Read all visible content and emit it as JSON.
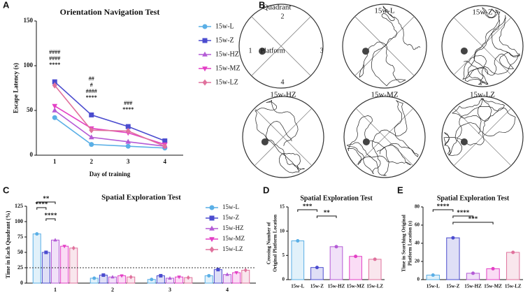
{
  "panel_letters": [
    "A",
    "B",
    "C",
    "D",
    "E"
  ],
  "chart_data": [
    {
      "type": "line",
      "title": "Orientation Navigation Test",
      "x_label": "Day of training",
      "y_label": "Escape Latency (s)",
      "categories": [
        "1",
        "2",
        "3",
        "4"
      ],
      "ylim": [
        0,
        150
      ],
      "yticks": [
        0,
        50,
        100,
        150
      ],
      "series": [
        {
          "name": "15w-L",
          "color": "#5aafe6",
          "marker": "circle",
          "values": [
            42,
            12,
            10,
            8
          ]
        },
        {
          "name": "15w-Z",
          "color": "#4b4ccf",
          "marker": "square",
          "values": [
            82,
            45,
            32,
            16
          ]
        },
        {
          "name": "15w-HZ",
          "color": "#b45bd6",
          "marker": "triangle",
          "values": [
            50,
            20,
            15,
            10
          ]
        },
        {
          "name": "15w-MZ",
          "color": "#e33fc5",
          "marker": "triangle-down",
          "values": [
            55,
            30,
            25,
            12
          ]
        },
        {
          "name": "15w-LZ",
          "color": "#e0729d",
          "marker": "diamond",
          "values": [
            78,
            28,
            27,
            10
          ]
        }
      ],
      "annotations": [
        {
          "category": 0,
          "text": "****",
          "color": "#4b4ccf"
        },
        {
          "category": 0,
          "text": "####",
          "color": "#b07ad8"
        },
        {
          "category": 0,
          "text": "####",
          "color": "#e57ab0"
        },
        {
          "category": 1,
          "text": "****",
          "color": "#4b4ccf"
        },
        {
          "category": 1,
          "text": "####",
          "color": "#b07ad8"
        },
        {
          "category": 1,
          "text": "#",
          "color": "#d77ac8"
        },
        {
          "category": 1,
          "text": "##",
          "color": "#e57ab0"
        },
        {
          "category": 2,
          "text": "****",
          "color": "#4b4ccf"
        },
        {
          "category": 2,
          "text": "###",
          "color": "#e57ab0"
        }
      ]
    },
    {
      "type": "bar",
      "title": "Spatial Exploration Test",
      "y_label": "Time in Each Quadrant (%)",
      "categories": [
        "1",
        "2",
        "3",
        "4"
      ],
      "ylim": [
        0,
        125
      ],
      "yticks": [
        0,
        25,
        50,
        75,
        100,
        125
      ],
      "reference_line": 25,
      "series": [
        {
          "name": "15w-L",
          "color": "#5aafe6",
          "marker": "circle",
          "values": [
            80,
            8,
            6,
            12
          ]
        },
        {
          "name": "15w-Z",
          "color": "#4b4ccf",
          "marker": "square",
          "values": [
            50,
            13,
            12,
            22
          ]
        },
        {
          "name": "15w-HZ",
          "color": "#b45bd6",
          "marker": "triangle",
          "values": [
            70,
            10,
            8,
            14
          ]
        },
        {
          "name": "15w-MZ",
          "color": "#e33fc5",
          "marker": "triangle-down",
          "values": [
            60,
            12,
            10,
            17
          ]
        },
        {
          "name": "15w-LZ",
          "color": "#e0729d",
          "marker": "diamond",
          "values": [
            57,
            10,
            9,
            21
          ]
        }
      ],
      "significance": [
        {
          "category": 0,
          "from": 0,
          "to": 1,
          "label": "****"
        },
        {
          "category": 0,
          "from": 0,
          "to": 2,
          "label": "**"
        },
        {
          "category": 0,
          "from": 1,
          "to": 2,
          "label": "****"
        }
      ]
    },
    {
      "type": "bar",
      "title": "Spatial Exploration Test",
      "y_label": [
        "Crossing Number of",
        "Original Platform Location"
      ],
      "categories": [
        "15w-L",
        "15w-Z",
        "15w-HZ",
        "15w-MZ",
        "15w-LZ"
      ],
      "colors": [
        "#5aafe6",
        "#4b4ccf",
        "#b45bd6",
        "#e33fc5",
        "#e0729d"
      ],
      "values": [
        8,
        2.5,
        6.8,
        4.8,
        4.2
      ],
      "ylim": [
        0,
        15
      ],
      "yticks": [
        0,
        5,
        10,
        15
      ],
      "significance": [
        {
          "from": 0,
          "to": 1,
          "label": "***"
        },
        {
          "from": 1,
          "to": 2,
          "label": "**"
        }
      ]
    },
    {
      "type": "bar",
      "title": "Spatial Exploration Test",
      "y_label": [
        "Time in Searching Original",
        "Platform Location (s)"
      ],
      "categories": [
        "15w-L",
        "15w-Z",
        "15w-HZ",
        "15w-MZ",
        "15w-LZ"
      ],
      "colors": [
        "#5aafe6",
        "#4b4ccf",
        "#b45bd6",
        "#e33fc5",
        "#e0729d"
      ],
      "values": [
        5,
        46,
        7,
        12,
        30
      ],
      "ylim": [
        0,
        80
      ],
      "yticks": [
        0,
        20,
        40,
        60,
        80
      ],
      "significance": [
        {
          "from": 0,
          "to": 1,
          "label": "****"
        },
        {
          "from": 1,
          "to": 2,
          "label": "****"
        },
        {
          "from": 1,
          "to": 3,
          "label": "***"
        }
      ]
    }
  ],
  "panel_b": {
    "quadrant": "Quadrant",
    "q1": "1",
    "q2": "2",
    "q3": "3",
    "q4": "4",
    "platform": "Platform",
    "groups": [
      "15w-L",
      "15w-Z",
      "15w-HZ",
      "15w-MZ",
      "15w-LZ"
    ]
  }
}
